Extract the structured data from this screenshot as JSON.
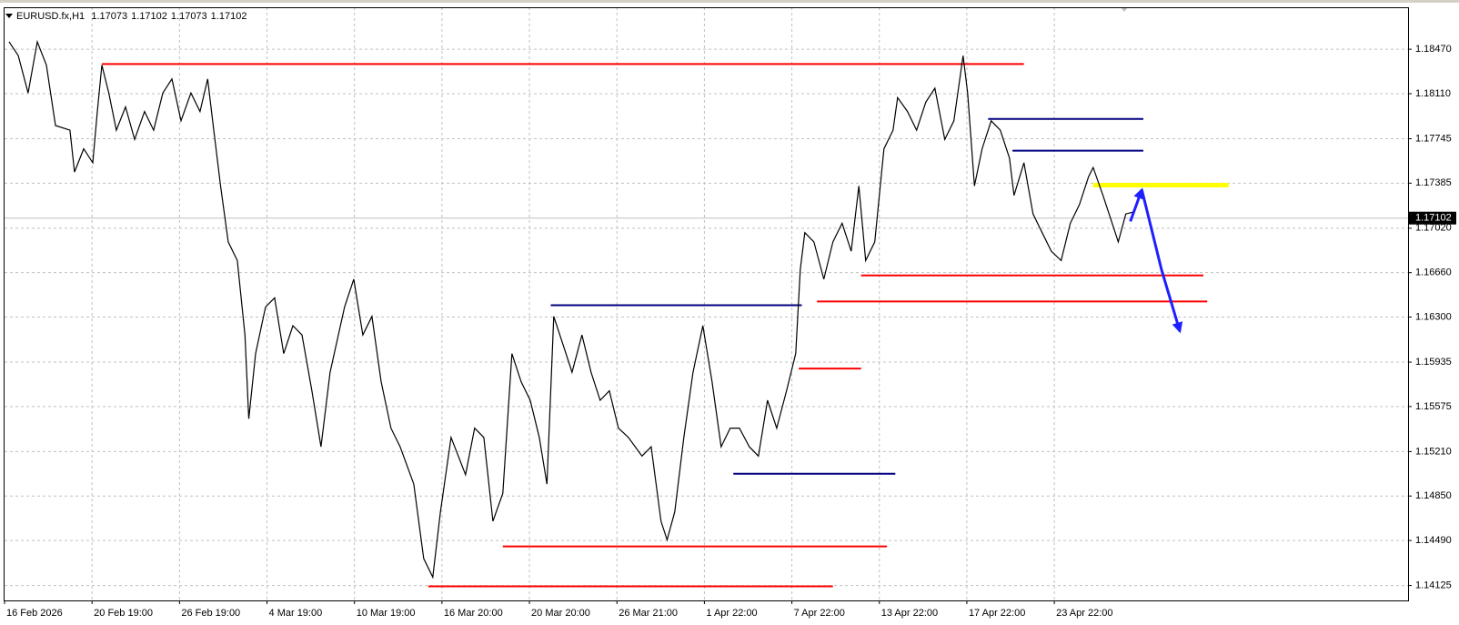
{
  "chart_data": {
    "type": "line",
    "title": "EURUSD.fx,H1",
    "ohlc": [
      1.17073,
      1.17102,
      1.17073,
      1.17102
    ],
    "current_price": {
      "value": 1.17102,
      "label": "1.17102"
    },
    "xlim": [
      0,
      1845
    ],
    "ylim": [
      1.14004,
      1.1881
    ],
    "grid": true,
    "xticks": [
      {
        "value": 0,
        "label": "16 Feb 2026"
      },
      {
        "value": 115,
        "label": "20 Feb 19:00"
      },
      {
        "value": 230,
        "label": "26 Feb 19:00"
      },
      {
        "value": 345,
        "label": "4 Mar 19:00"
      },
      {
        "value": 460,
        "label": "10 Mar 19:00"
      },
      {
        "value": 575,
        "label": "16 Mar 20:00"
      },
      {
        "value": 690,
        "label": "20 Mar 20:00"
      },
      {
        "value": 805,
        "label": "26 Mar 21:00"
      },
      {
        "value": 920,
        "label": "1 Apr 22:00"
      },
      {
        "value": 1035,
        "label": "7 Apr 22:00"
      },
      {
        "value": 1150,
        "label": "13 Apr 22:00"
      },
      {
        "value": 1265,
        "label": "17 Apr 22:00"
      },
      {
        "value": 1380,
        "label": "23 Apr 22:00"
      }
    ],
    "yticks": [
      {
        "value": 1.1847,
        "label": "1.18470"
      },
      {
        "value": 1.1811,
        "label": "1.18110"
      },
      1.17745,
      1.17385,
      {
        "value": 1.1702,
        "label": "1.17020"
      },
      {
        "value": 1.1666,
        "label": "1.16660"
      },
      {
        "value": 1.163,
        "label": "1.16300"
      },
      1.15935,
      1.15575,
      {
        "value": 1.1521,
        "label": "1.15210"
      },
      {
        "value": 1.1485,
        "label": "1.14850"
      },
      {
        "value": 1.1449,
        "label": "1.14490"
      },
      1.14125
    ],
    "series": [
      {
        "color": "#000000",
        "x": [
          6,
          18,
          31,
          43,
          55,
          67,
          86,
          92,
          104,
          116,
          122,
          128,
          137,
          147,
          159,
          171,
          184,
          196,
          208,
          220,
          232,
          245,
          257,
          267,
          275,
          284,
          294,
          306,
          316,
          321,
          330,
          343,
          355,
          367,
          379,
          391,
          404,
          416,
          428,
          447,
          459,
          471,
          483,
          495,
          508,
          520,
          538,
          551,
          563,
          573,
          587,
          606,
          618,
          630,
          642,
          655,
          667,
          679,
          691,
          703,
          713,
          722,
          734,
          746,
          759,
          771,
          783,
          795,
          807,
          820,
          838,
          850,
          863,
          871,
          881,
          893,
          905,
          918,
          930,
          942,
          954,
          966,
          979,
          991,
          1003,
          1015,
          1028,
          1040,
          1046,
          1052,
          1064,
          1077,
          1089,
          1101,
          1113,
          1123,
          1132,
          1144,
          1156,
          1168,
          1174,
          1187,
          1199,
          1211,
          1223,
          1236,
          1248,
          1260,
          1266,
          1275,
          1285,
          1297,
          1309,
          1321,
          1327,
          1340,
          1352,
          1364,
          1376,
          1389,
          1401,
          1413,
          1425,
          1431,
          1444,
          1456,
          1464,
          1474,
          1483
        ],
        "values": [
          1.18531,
          1.18418,
          1.18116,
          1.18531,
          1.18342,
          1.17852,
          1.17814,
          1.17475,
          1.17663,
          1.1755,
          1.17965,
          1.18342,
          1.18116,
          1.17814,
          1.18003,
          1.17739,
          1.17965,
          1.17814,
          1.18116,
          1.18229,
          1.1789,
          1.18116,
          1.17965,
          1.18229,
          1.17814,
          1.17362,
          1.16909,
          1.16758,
          1.16155,
          1.15476,
          1.16004,
          1.16381,
          1.16456,
          1.16004,
          1.1623,
          1.16155,
          1.15702,
          1.15249,
          1.15853,
          1.16381,
          1.16607,
          1.16155,
          1.16305,
          1.15777,
          1.154,
          1.15249,
          1.14947,
          1.14344,
          1.14193,
          1.14721,
          1.15325,
          1.15023,
          1.154,
          1.15325,
          1.14646,
          1.14872,
          1.16004,
          1.15777,
          1.15626,
          1.15325,
          1.14947,
          1.16305,
          1.16079,
          1.15853,
          1.16155,
          1.15853,
          1.15626,
          1.15702,
          1.154,
          1.15325,
          1.15174,
          1.15249,
          1.14646,
          1.14495,
          1.14721,
          1.15325,
          1.15853,
          1.1623,
          1.15777,
          1.15249,
          1.154,
          1.154,
          1.15249,
          1.15174,
          1.15626,
          1.154,
          1.15702,
          1.16004,
          1.16683,
          1.16984,
          1.16909,
          1.16607,
          1.16909,
          1.1706,
          1.16833,
          1.17362,
          1.16758,
          1.16909,
          1.17663,
          1.17814,
          1.18078,
          1.17965,
          1.17814,
          1.18041,
          1.18154,
          1.17739,
          1.1789,
          1.18418,
          1.18116,
          1.17362,
          1.17663,
          1.1789,
          1.17814,
          1.17588,
          1.17286,
          1.1755,
          1.17135,
          1.16984,
          1.16833,
          1.16758,
          1.1706,
          1.17211,
          1.17437,
          1.17512,
          1.17286,
          1.1706,
          1.16909,
          1.17135,
          1.1715
        ]
      }
    ],
    "levels": [
      {
        "color": "#ff0000",
        "width": 2,
        "x": [
          128,
          1340
        ],
        "y": 1.1835
      },
      {
        "color": "#ff0000",
        "width": 2,
        "x": [
          1126,
          1576
        ],
        "y": 1.16637
      },
      {
        "color": "#ff0000",
        "width": 2,
        "x": [
          1068,
          1581
        ],
        "y": 1.16426
      },
      {
        "color": "#ff0000",
        "width": 2,
        "x": [
          1044,
          1126
        ],
        "y": 1.15883
      },
      {
        "color": "#ff0000",
        "width": 2,
        "x": [
          655,
          1160
        ],
        "y": 1.14442
      },
      {
        "color": "#ff0000",
        "width": 2,
        "x": [
          557,
          1089
        ],
        "y": 1.14118
      },
      {
        "color": "#000080",
        "width": 2,
        "x": [
          1293,
          1497
        ],
        "y": 1.17905
      },
      {
        "color": "#000080",
        "width": 2,
        "x": [
          1325,
          1497
        ],
        "y": 1.17648
      },
      {
        "color": "#000080",
        "width": 2,
        "x": [
          718,
          1048
        ],
        "y": 1.16396
      },
      {
        "color": "#000080",
        "width": 2,
        "x": [
          958,
          1171
        ],
        "y": 1.1503
      },
      {
        "color": "#ffff00",
        "width": 5,
        "x": [
          1431,
          1609
        ],
        "y": 1.17369
      }
    ],
    "arrow": {
      "color": "#1f1fff",
      "x": [
        1480,
        1495,
        1521,
        1545
      ],
      "values": [
        1.17075,
        1.17331,
        1.16683,
        1.16185
      ]
    }
  }
}
